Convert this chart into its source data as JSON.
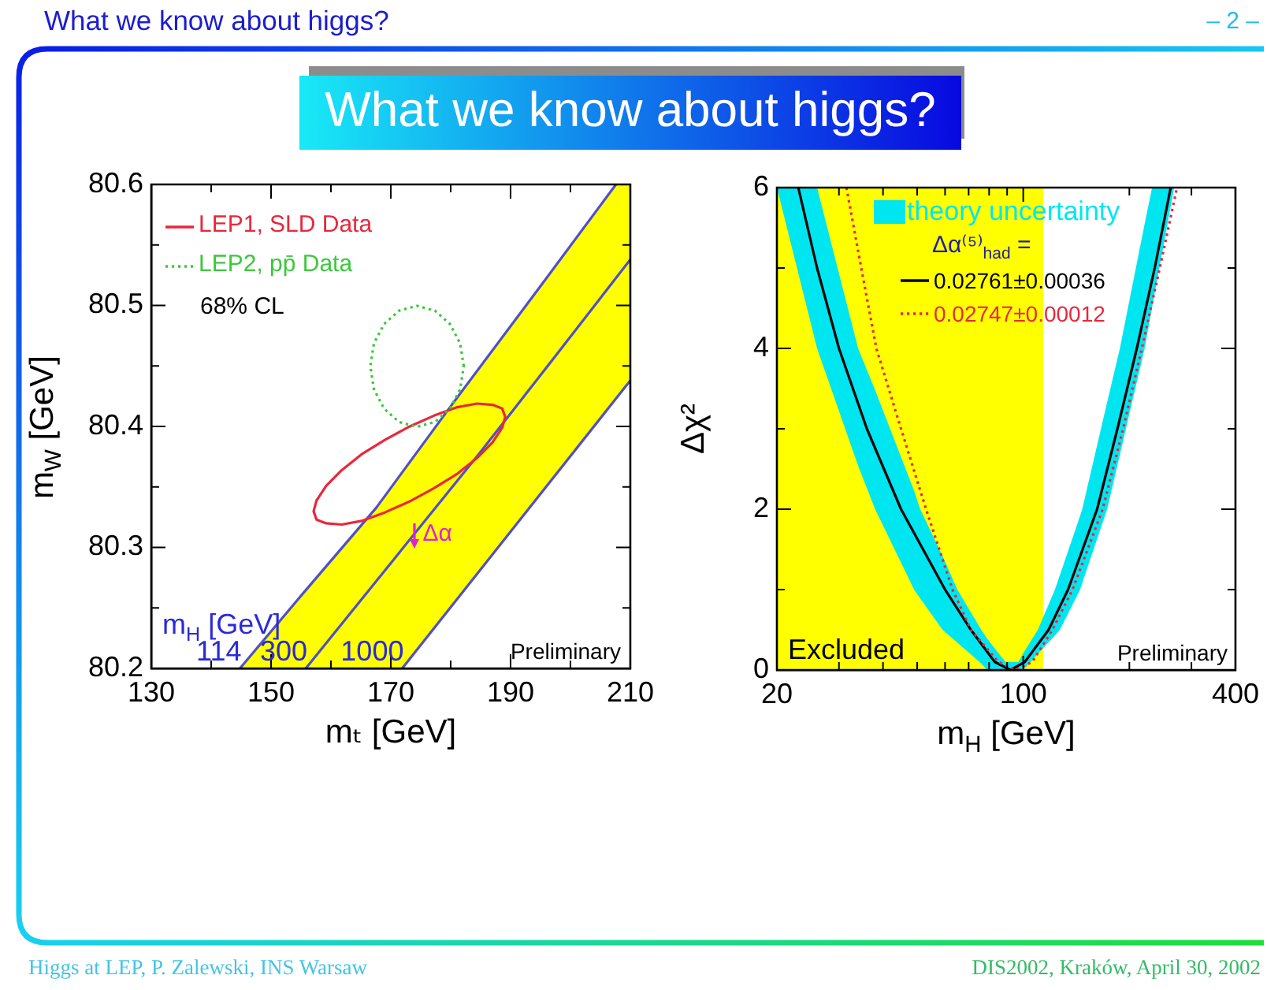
{
  "chart_data": [
    {
      "type": "line",
      "title": "What we know about higgs?",
      "xlabel": "mₜ [GeV]",
      "ylabel": "m$_{W}$ [GeV]",
      "xlim": [
        130,
        210
      ],
      "xticks": [
        130,
        {
          "value": 140,
          "label": null
        },
        150,
        {
          "value": 160,
          "label": null
        },
        170,
        {
          "value": 180,
          "label": null
        },
        190,
        {
          "value": 200,
          "label": null
        },
        210
      ],
      "ylim": [
        80.2,
        80.6
      ],
      "yticks": [
        80.2,
        {
          "value": 80.25,
          "label": null
        },
        80.3,
        {
          "value": 80.35,
          "label": null
        },
        80.4,
        {
          "value": 80.45,
          "label": null
        },
        80.5,
        {
          "value": 80.55,
          "label": null
        },
        80.6
      ],
      "series": [
        {
          "color": "#ffff00",
          "x": [
            144.8,
            150,
            155,
            160,
            165,
            170,
            171.9,
            175,
            180,
            185,
            190,
            195,
            200,
            205,
            207.6,
            210
          ],
          "values": [
            null,
            null,
            null,
            null,
            null,
            null,
            null,
            null,
            null,
            null,
            null,
            null,
            null,
            null,
            null,
            null
          ],
          "lower": [
            80.2,
            80.2,
            80.2,
            80.2,
            80.2,
            80.2,
            80.2,
            80.219,
            80.251,
            80.282,
            80.313,
            80.344,
            80.376,
            80.407,
            80.423,
            80.438
          ],
          "upper": [
            80.2,
            80.23,
            80.26,
            80.289,
            80.318,
            80.349,
            80.362,
            80.383,
            80.417,
            80.45,
            80.483,
            80.516,
            80.55,
            80.583,
            80.6,
            80.6
          ]
        },
        {
          "color": "#5050c8",
          "x": [
            144.8,
            155,
            167.6,
            180.2,
            195,
            207.6
          ],
          "values": [
            80.2,
            80.26,
            80.333,
            80.418,
            80.516,
            80.6
          ]
        },
        {
          "color": "#5050c8",
          "x": [
            155.8,
            170,
            185,
            197,
            210
          ],
          "values": [
            80.2,
            80.287,
            80.379,
            80.455,
            80.538
          ]
        },
        {
          "color": "#5050c8",
          "x": [
            171.9,
            190,
            210
          ],
          "values": [
            80.2,
            80.313,
            80.438
          ]
        }
      ],
      "annotations": [
        "LEP1, SLD Data",
        "LEP2, pp̄ Data",
        "68% CL",
        "Preliminary",
        "m$_{H}$ [GeV]",
        {
          "text": "114",
          "x": 144.8,
          "y": 80.2
        },
        {
          "text": "300",
          "x": 155.8,
          "y": 80.2
        },
        {
          "text": "1000",
          "x": 171.9,
          "y": 80.2
        },
        {
          "text": "Δα",
          "x": 174,
          "y": 80.31
        },
        "What we know about higgs?",
        "– 2 –",
        "Higgs at LEP, P. Zalewski, INS Warsaw",
        "DIS2002, Kraków, April 30, 2002"
      ]
    },
    {
      "type": "line",
      "xlabel": "m$_{H}$ [GeV]",
      "ylabel": "Δχ²",
      "log": "x",
      "xlim": [
        20,
        400
      ],
      "xticks": [
        20,
        {
          "value": 30,
          "label": null
        },
        {
          "value": 40,
          "label": null
        },
        {
          "value": 50,
          "label": null
        },
        {
          "value": 60,
          "label": null
        },
        {
          "value": 70,
          "label": null
        },
        {
          "value": 80,
          "label": null
        },
        {
          "value": 90,
          "label": null
        },
        100,
        {
          "value": 200,
          "label": null
        },
        {
          "value": 300,
          "label": null
        },
        400
      ],
      "ylim": [
        0,
        6
      ],
      "yticks": [
        0,
        {
          "value": 1,
          "label": null
        },
        2,
        {
          "value": 3,
          "label": null
        },
        4,
        {
          "value": 5,
          "label": null
        },
        6
      ],
      "legend": "top",
      "legend_title": "Δα⁽⁵⁾$_{had}$ =",
      "bands": [
        {
          "axis": "x",
          "from": 20,
          "to": 114,
          "label": "Excluded",
          "color": "#ffff00"
        }
      ],
      "series": [
        {
          "name": "theory uncertainty",
          "color": "#00e6f0",
          "x": [
            20,
            26,
            34,
            38,
            49,
            51,
            59,
            65,
            76,
            79,
            89,
            97,
            100,
            110,
            123,
            127,
            145,
            147,
            173,
            188,
            221,
            232,
            268
          ],
          "values": [
            null,
            null,
            null,
            null,
            null,
            null,
            null,
            null,
            null,
            null,
            null,
            null,
            null,
            null,
            null,
            null,
            null,
            null,
            null,
            null,
            null,
            null,
            null
          ],
          "lower": [
            6,
            4,
            2.54,
            2,
            1,
            0.89,
            0.5,
            0.34,
            0.08,
            0,
            0,
            0,
            0,
            0.2,
            0.43,
            0.5,
            1,
            1.08,
            2,
            2.68,
            4,
            4.51,
            6
          ],
          "upper": [
            6,
            6,
            4,
            3.48,
            2.23,
            2,
            1.42,
            1,
            0.5,
            0.39,
            0.1,
            0.1,
            0.21,
            0.5,
            1,
            1.18,
            1.92,
            2,
            3.33,
            4,
            5.55,
            6,
            6
          ]
        },
        {
          "name": "0.02761±0.00036",
          "color": "#000000",
          "x": [
            23,
            26,
            30,
            36,
            45,
            60,
            71,
            83,
            92,
            101,
            118,
            134,
            162,
            185,
            210,
            236,
            262
          ],
          "values": [
            6,
            5,
            4,
            3,
            2,
            1,
            0.5,
            0.1,
            0,
            0.1,
            0.5,
            1,
            2,
            3,
            4,
            5,
            6
          ]
        },
        {
          "name": "0.02747±0.00012",
          "color": "#e8283c",
          "line_style": "dotted",
          "x": [
            31.5,
            34.7,
            38.3,
            45,
            53,
            63,
            71,
            85,
            95,
            106,
            121,
            138,
            168,
            192,
            217,
            244,
            273
          ],
          "values": [
            6,
            5,
            4,
            3,
            2,
            1,
            0.5,
            0.1,
            0,
            0.1,
            0.5,
            1,
            2,
            3,
            4,
            5,
            6
          ]
        }
      ],
      "annotations": [
        "Preliminary"
      ]
    }
  ]
}
